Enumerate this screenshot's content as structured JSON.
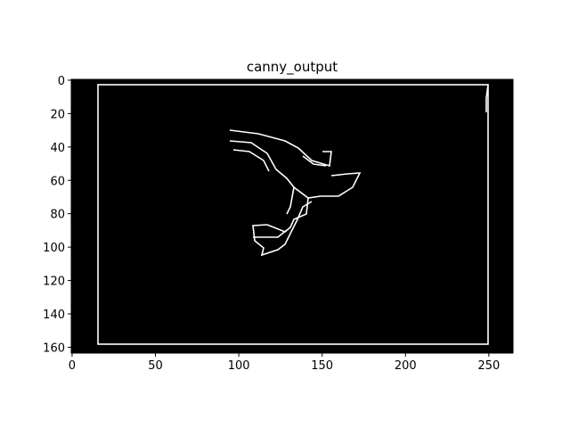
{
  "chart_data": {
    "type": "image",
    "title": "canny_output",
    "xlim": [
      -0.5,
      264.5
    ],
    "ylim": [
      163.5,
      -0.5
    ],
    "xticks": [
      0,
      50,
      100,
      150,
      200,
      250
    ],
    "yticks": [
      0,
      20,
      40,
      60,
      80,
      100,
      120,
      140,
      160
    ]
  }
}
